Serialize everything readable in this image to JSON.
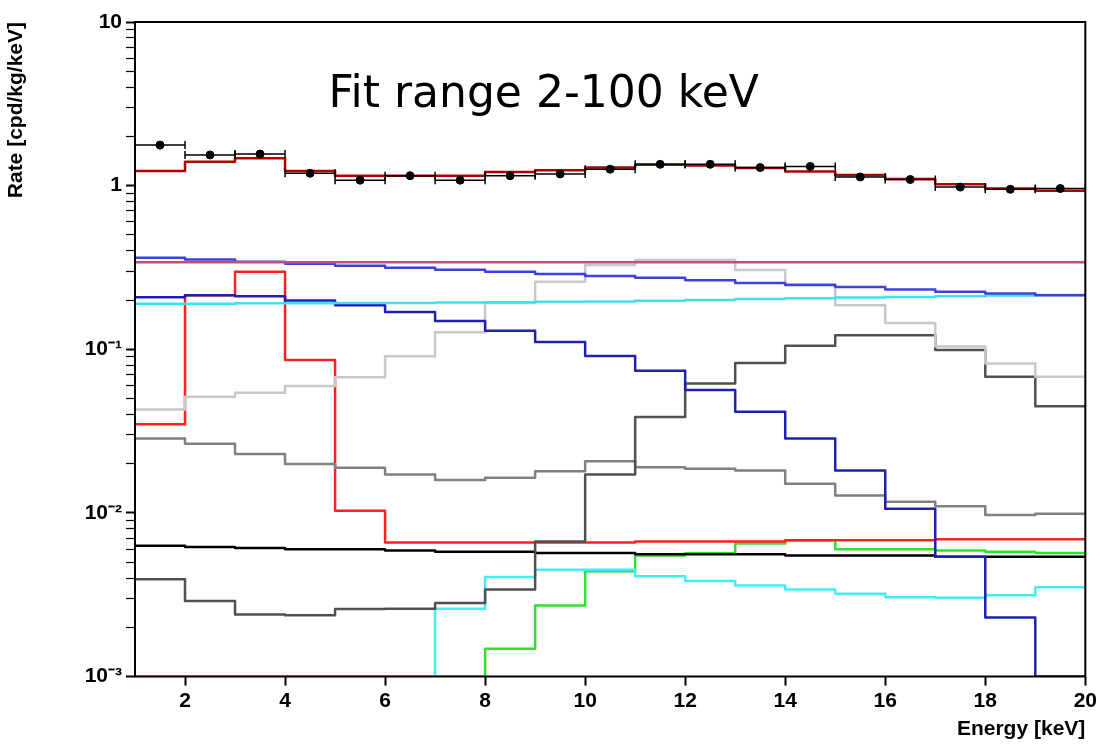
{
  "chart_data": {
    "type": "histogram",
    "xlabel": "Energy [keV]",
    "ylabel": "Rate [cpd/kg/keV]",
    "annotations": [
      "Fit range 2-100 keV"
    ],
    "legend": false,
    "log": "y",
    "xlim": [
      1,
      20
    ],
    "xticks": [
      2,
      4,
      6,
      8,
      10,
      12,
      14,
      16,
      18,
      20
    ],
    "ylim": [
      0.001,
      10
    ],
    "yticks": [
      {
        "value": 0.001,
        "label": "10⁻³"
      },
      {
        "value": 0.002,
        "label": null
      },
      {
        "value": 0.003,
        "label": null
      },
      {
        "value": 0.004,
        "label": null
      },
      {
        "value": 0.005,
        "label": null
      },
      {
        "value": 0.006,
        "label": null
      },
      {
        "value": 0.007,
        "label": null
      },
      {
        "value": 0.008,
        "label": null
      },
      {
        "value": 0.009,
        "label": null
      },
      {
        "value": 0.01,
        "label": "10⁻²"
      },
      {
        "value": 0.02,
        "label": null
      },
      {
        "value": 0.03,
        "label": null
      },
      {
        "value": 0.04,
        "label": null
      },
      {
        "value": 0.05,
        "label": null
      },
      {
        "value": 0.06,
        "label": null
      },
      {
        "value": 0.07,
        "label": null
      },
      {
        "value": 0.08,
        "label": null
      },
      {
        "value": 0.09,
        "label": null
      },
      {
        "value": 0.1,
        "label": "10⁻¹"
      },
      {
        "value": 0.2,
        "label": null
      },
      {
        "value": 0.3,
        "label": null
      },
      {
        "value": 0.4,
        "label": null
      },
      {
        "value": 0.5,
        "label": null
      },
      {
        "value": 0.6,
        "label": null
      },
      {
        "value": 0.7,
        "label": null
      },
      {
        "value": 0.8,
        "label": null
      },
      {
        "value": 0.9,
        "label": null
      },
      1,
      {
        "value": 2,
        "label": null
      },
      {
        "value": 3,
        "label": null
      },
      {
        "value": 4,
        "label": null
      },
      {
        "value": 5,
        "label": null
      },
      {
        "value": 6,
        "label": null
      },
      {
        "value": 7,
        "label": null
      },
      {
        "value": 8,
        "label": null
      },
      {
        "value": 9,
        "label": null
      },
      10
    ],
    "bins": [
      1,
      2,
      3,
      4,
      5,
      6,
      7,
      8,
      9,
      10,
      11,
      12,
      13,
      14,
      15,
      16,
      17,
      18,
      19,
      20
    ],
    "series": [
      {
        "type": "scatter",
        "marker": "circle",
        "color": "#000000",
        "x": [
          1.5,
          2.5,
          3.5,
          4.5,
          5.5,
          6.5,
          7.5,
          8.5,
          9.5,
          10.5,
          11.5,
          12.5,
          13.5,
          14.5,
          15.5,
          16.5,
          17.5,
          18.5,
          19.5
        ],
        "values": [
          1.77,
          1.54,
          1.56,
          1.19,
          1.08,
          1.15,
          1.08,
          1.15,
          1.18,
          1.26,
          1.35,
          1.35,
          1.29,
          1.31,
          1.13,
          1.09,
          0.98,
          0.95,
          0.96
        ],
        "errors": [
          [
            1.66,
            1.84
          ],
          null,
          null,
          null,
          null,
          null,
          null,
          null,
          null,
          null,
          null,
          null,
          null,
          null,
          null,
          null,
          null,
          null,
          null
        ],
        "xerrors": [
          0.5,
          0.5,
          0.5,
          0.5,
          0.5,
          0.5,
          0.5,
          0.5,
          0.5,
          0.5,
          0.5,
          0.5,
          0.5,
          0.5,
          0.5,
          0.5,
          0.5,
          0.5,
          0.5
        ]
      },
      {
        "color": "#b00000",
        "values": [
          1.23,
          1.4,
          1.47,
          1.23,
          1.15,
          1.15,
          1.15,
          1.21,
          1.24,
          1.29,
          1.34,
          1.33,
          1.28,
          1.22,
          1.16,
          1.1,
          1.02,
          0.96,
          0.93
        ]
      },
      {
        "color": "#c05080",
        "values": [
          0.34,
          0.34,
          0.34,
          0.34,
          0.34,
          0.34,
          0.34,
          0.34,
          0.34,
          0.34,
          0.34,
          0.34,
          0.34,
          0.34,
          0.34,
          0.34,
          0.34,
          0.34,
          0.34
        ]
      },
      {
        "color": "#4040e0",
        "values": [
          0.363,
          0.354,
          0.343,
          0.333,
          0.324,
          0.315,
          0.306,
          0.298,
          0.288,
          0.28,
          0.274,
          0.264,
          0.254,
          0.247,
          0.24,
          0.232,
          0.225,
          0.219,
          0.214
        ]
      },
      {
        "color": "#40e0f0",
        "values": [
          0.19,
          0.19,
          0.191,
          0.191,
          0.192,
          0.192,
          0.193,
          0.194,
          0.195,
          0.196,
          0.198,
          0.2,
          0.203,
          0.205,
          0.207,
          0.209,
          0.211,
          0.213,
          0.215
        ]
      },
      {
        "color": "#2020b0",
        "values": [
          0.208,
          0.214,
          0.211,
          0.199,
          0.186,
          0.169,
          0.149,
          0.13,
          0.111,
          0.091,
          0.074,
          0.0565,
          0.0415,
          0.0285,
          0.0182,
          0.0106,
          0.0054,
          0.0023,
          0.001
        ]
      },
      {
        "color": "#c8c8c8",
        "values": [
          0.0428,
          0.0513,
          0.0542,
          0.0596,
          0.0676,
          0.0908,
          0.127,
          0.192,
          0.259,
          0.327,
          0.351,
          0.351,
          0.305,
          0.25,
          0.186,
          0.145,
          0.104,
          0.082,
          0.068
        ]
      },
      {
        "color": "#505050",
        "values": [
          0.00393,
          0.0029,
          0.0024,
          0.00237,
          0.00259,
          0.0026,
          0.00282,
          0.0034,
          0.0067,
          0.0172,
          0.0386,
          0.0618,
          0.0826,
          0.105,
          0.122,
          0.122,
          0.099,
          0.068,
          0.0449
        ]
      },
      {
        "color": "#808080",
        "values": [
          0.0285,
          0.0265,
          0.0229,
          0.0199,
          0.0189,
          0.0172,
          0.0159,
          0.0164,
          0.018,
          0.0207,
          0.019,
          0.0186,
          0.0182,
          0.0151,
          0.0128,
          0.0117,
          0.011,
          0.0097,
          0.0099
        ]
      },
      {
        "color": "#ff2020",
        "values": [
          0.0348,
          0.214,
          0.298,
          0.086,
          0.0103,
          0.0066,
          0.0066,
          0.0066,
          0.0066,
          0.0066,
          0.0067,
          0.0067,
          0.0067,
          0.0068,
          0.0068,
          0.0068,
          0.0069,
          0.0069,
          0.0069
        ]
      },
      {
        "color": "#000000",
        "values": [
          0.0063,
          0.0062,
          0.0061,
          0.006,
          0.006,
          0.0059,
          0.0058,
          0.0058,
          0.0057,
          0.0057,
          0.0056,
          0.0056,
          0.0056,
          0.0055,
          0.0055,
          0.0055,
          0.0054,
          0.0054,
          0.0054
        ]
      },
      {
        "color": "#40f0f0",
        "values": [
          0.001,
          0.001,
          0.001,
          0.001,
          0.001,
          0.001,
          0.0026,
          0.00406,
          0.0045,
          0.0045,
          0.0041,
          0.00384,
          0.0036,
          0.0034,
          0.00321,
          0.00305,
          0.00303,
          0.00314,
          0.00352
        ]
      },
      {
        "color": "#30e030",
        "values": [
          0.001,
          0.001,
          0.001,
          0.001,
          0.001,
          0.001,
          0.001,
          0.00148,
          0.00272,
          0.0044,
          0.0055,
          0.00568,
          0.0065,
          0.0068,
          0.006,
          0.006,
          0.0059,
          0.0058,
          0.0057
        ]
      }
    ]
  }
}
